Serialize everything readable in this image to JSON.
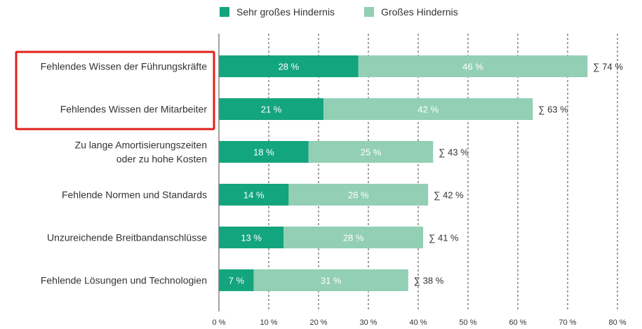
{
  "chart_data": {
    "type": "bar",
    "orientation": "horizontal",
    "stacked": true,
    "categories": [
      [
        "Fehlendes Wissen der Führungskräfte"
      ],
      [
        "Fehlendes Wissen der Mitarbeiter"
      ],
      [
        "Zu lange Amortisierungszeiten",
        "oder zu hohe Kosten"
      ],
      [
        "Fehlende Normen und Standards"
      ],
      [
        "Unzureichende Breitbandanschlüsse"
      ],
      [
        "Fehlende Lösungen und Technologien"
      ]
    ],
    "series": [
      {
        "name": "Sehr großes Hindernis",
        "color": "#13a57e",
        "values": [
          28,
          21,
          18,
          14,
          13,
          7
        ],
        "labels": [
          "28 %",
          "21 %",
          "18 %",
          "14 %",
          "13 %",
          "7 %"
        ]
      },
      {
        "name": "Großes Hindernis",
        "color": "#92cfb5",
        "values": [
          46,
          42,
          25,
          28,
          28,
          31
        ],
        "labels": [
          "46 %",
          "42 %",
          "25 %",
          "28 %",
          "28 %",
          "31 %"
        ]
      }
    ],
    "totals": [
      "∑ 74 %",
      "∑ 63 %",
      "∑ 43 %",
      "∑ 42 %",
      "∑ 41 %",
      "∑ 38 %"
    ],
    "xlim": [
      0,
      80
    ],
    "xticks": [
      0,
      10,
      20,
      30,
      40,
      50,
      60,
      70,
      80
    ],
    "xtick_labels": [
      "0 %",
      "10 %",
      "20 %",
      "30 %",
      "40 %",
      "50 %",
      "60 %",
      "70 %",
      "80 %"
    ],
    "grid": "vertical-dashed",
    "legend": "top",
    "highlight": {
      "categories": [
        0,
        1
      ],
      "color": "#e0201b"
    }
  }
}
